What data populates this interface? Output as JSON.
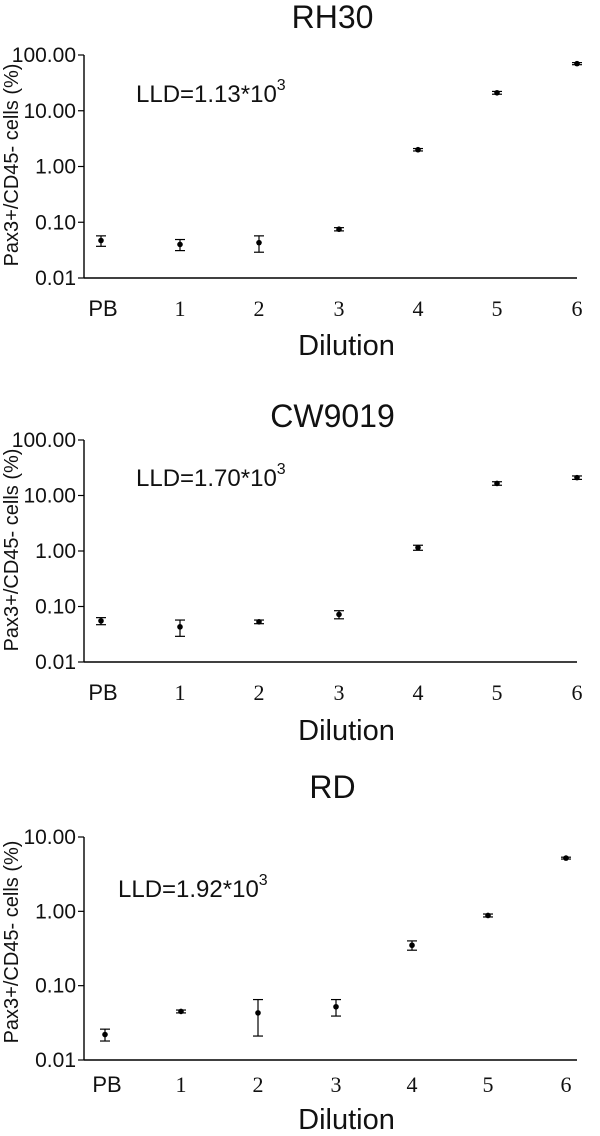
{
  "chart_data": [
    {
      "type": "scatter",
      "title": "RH30",
      "xlabel": "Dilution",
      "ylabel": "Pax3+/CD45- cells (%)",
      "annotation": {
        "text": "LLD=1.13*10",
        "sup": "3"
      },
      "yscale": "log",
      "ylim": [
        0.01,
        100
      ],
      "yticks": [
        "0.01",
        "0.10",
        "1.00",
        "10.00",
        "100.00"
      ],
      "categories": [
        "PB",
        "1",
        "2",
        "3",
        "4",
        "5",
        "6"
      ],
      "values": [
        0.047,
        0.04,
        0.043,
        0.075,
        2.0,
        21,
        70
      ],
      "errors": [
        0.01,
        0.009,
        0.014,
        0.005,
        0.1,
        1.2,
        3.0
      ]
    },
    {
      "type": "scatter",
      "title": "CW9019",
      "xlabel": "Dilution",
      "ylabel": "Pax3+/CD45- cells (%)",
      "annotation": {
        "text": "LLD=1.70*10",
        "sup": "3"
      },
      "yscale": "log",
      "ylim": [
        0.01,
        100
      ],
      "yticks": [
        "0.01",
        "0.10",
        "1.00",
        "10.00",
        "100.00"
      ],
      "categories": [
        "PB",
        "1",
        "2",
        "3",
        "4",
        "5",
        "6"
      ],
      "values": [
        0.055,
        0.043,
        0.053,
        0.072,
        1.15,
        16.5,
        21
      ],
      "errors": [
        0.008,
        0.014,
        0.004,
        0.012,
        0.12,
        1.2,
        1.5
      ]
    },
    {
      "type": "scatter",
      "title": "RD",
      "xlabel": "Dilution",
      "ylabel": "Pax3+/CD45- cells (%)",
      "annotation": {
        "text": "LLD=1.92*10",
        "sup": "3"
      },
      "yscale": "log",
      "ylim": [
        0.01,
        10
      ],
      "yticks": [
        "0.01",
        "0.10",
        "1.00",
        "10.00"
      ],
      "categories": [
        "PB",
        "1",
        "2",
        "3",
        "4",
        "5",
        "6"
      ],
      "values": [
        0.022,
        0.045,
        0.043,
        0.052,
        0.35,
        0.88,
        5.2
      ],
      "errors": [
        0.004,
        0.002,
        0.022,
        0.013,
        0.05,
        0.04,
        0.15
      ]
    }
  ]
}
